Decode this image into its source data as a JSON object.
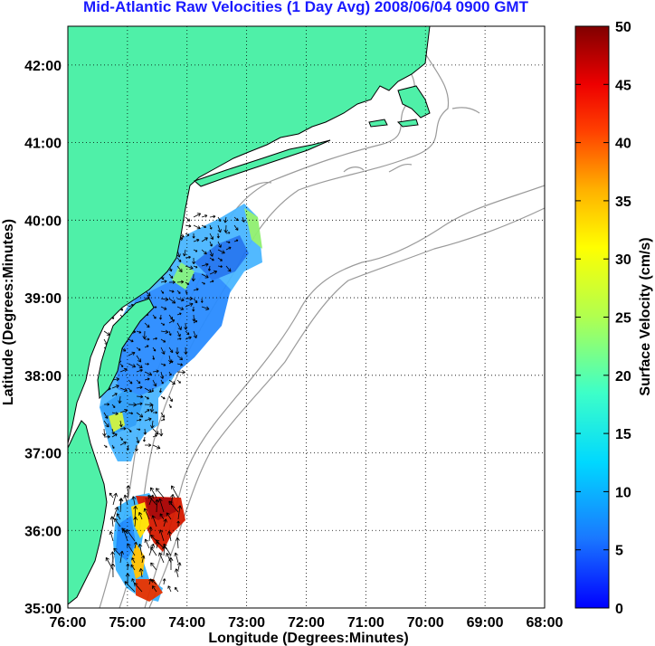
{
  "title": "Mid-Atlantic Raw Velocities (1 Day Avg) 2008/06/04 0900 GMT",
  "xlabel": "Longitude (Degrees:Minutes)",
  "ylabel": "Latitude (Degrees:Minutes)",
  "x_ticks": [
    "76:00",
    "75:00",
    "74:00",
    "73:00",
    "72:00",
    "71:00",
    "70:00",
    "69:00",
    "68:00"
  ],
  "y_ticks": [
    "42:00",
    "41:00",
    "40:00",
    "39:00",
    "38:00",
    "37:00",
    "36:00",
    "35:00"
  ],
  "colorbar": {
    "label": "Surface Velocity (cm/s)",
    "ticks": [
      "50",
      "45",
      "40",
      "35",
      "30",
      "25",
      "20",
      "15",
      "10",
      "5",
      "0"
    ]
  },
  "colors": {
    "land": "#4ff0a8",
    "title": "#1a1aff",
    "bathymetry": "#9a9a9a"
  },
  "chart_data": {
    "type": "heatmap",
    "title": "Mid-Atlantic Raw Velocities (1 Day Avg) 2008/06/04 0900 GMT",
    "xlabel": "Longitude (Degrees:Minutes)",
    "ylabel": "Latitude (Degrees:Minutes)",
    "xlim": [
      -76,
      -68
    ],
    "ylim": [
      35,
      42.5
    ],
    "clim": [
      0,
      50
    ],
    "grid": true,
    "colormap": "jet",
    "units": "cm/s"
  }
}
